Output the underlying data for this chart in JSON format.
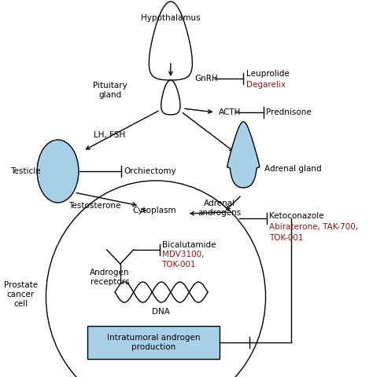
{
  "bg_color": "#ffffff",
  "text_color": "#000000",
  "red_color": "#8B1A1A",
  "blue_fill": "#a8d0e8",
  "lw": 1.0,
  "labels": {
    "hypothalamus": "Hypothalamus",
    "pituitary_gland": "Pituitary\ngland",
    "gnrh": "GnRH",
    "leuprolide": "Leuprolide",
    "degarelix": "Degarelix",
    "acth": "ACTH",
    "prednisone": "Prednisone",
    "lh_fsh": "LH, FSH",
    "testicle": "Testicle",
    "orchiectomy": "Orchiectomy",
    "adrenal_gland": "Adrenal gland",
    "testosterone": "Testosterone",
    "cytoplasm": "Cytoplasm",
    "adrenal_androgens": "Adrenal\nandrogens",
    "ketoconazole": "Ketoconazole",
    "abiraterone": "Abiraterone, TAK-700,",
    "tok001_adrenal": "TOK-001",
    "androgen_receptors": "Androgen\nreceptors",
    "bicalutamide": "Bicalutamide",
    "mdv3100": "MDV3100,",
    "tok001_ar": "TOK-001",
    "dna": "DNA",
    "intratumoral": "Intratumoral androgen\nproduction",
    "prostate_cancer_cell": "Prostate\ncancer\ncell"
  }
}
